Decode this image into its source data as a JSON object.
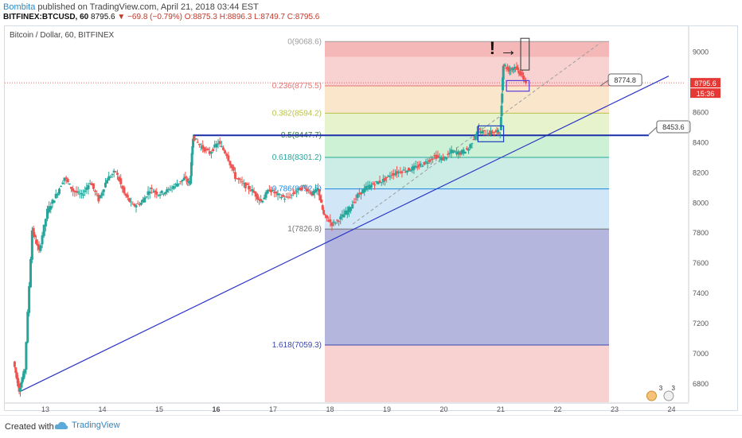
{
  "header": {
    "author": "Bombita",
    "published": "published on TradingView.com, April 21, 2018 03:44 EST",
    "symbol": "BITFINEX:BTCUSD, 60",
    "last": "8795.6",
    "change": "−69.8 (−0.79%)",
    "ohlc": "O:8875.3 H:8896.3 L:8749.7 C:8795.6"
  },
  "chart_title": "Bitcoin / Dollar, 60, BITFINEX",
  "footer": {
    "created_with": "Created with",
    "brand": "TradingView"
  },
  "colors": {
    "bull": "#26a69a",
    "bear": "#ef5350",
    "trend": "#2b35c7",
    "hline": "#1b2fa8",
    "fib0": "#ef9a9a",
    "fib236": "#f3c98b",
    "fib382": "#c9e58f",
    "fib5": "#8fdf9f",
    "fib618": "#8fd6c7",
    "fib786": "#9ac7ea",
    "fib1": "#bdbdbd",
    "fib1618": "#9fa1ef"
  },
  "chart_data": {
    "type": "candlestick",
    "title": "Bitcoin / Dollar, 60, BITFINEX",
    "x_ticks": [
      "13",
      "14",
      "15",
      "16",
      "17",
      "18",
      "19",
      "20",
      "21",
      "22",
      "23",
      "24"
    ],
    "y_ticks": [
      6800,
      7000,
      7200,
      7400,
      7600,
      7800,
      8000,
      8200,
      8400,
      8600,
      8800,
      9000
    ],
    "ylim": [
      6680,
      9170
    ],
    "last_price": "8795.6",
    "countdown": "15:36",
    "fib_retracement": [
      {
        "label": "0(9068.6)",
        "price": 9068.6
      },
      {
        "label": "0.236(8775.5)",
        "price": 8775.5
      },
      {
        "label": "0.382(8594.2)",
        "price": 8594.2
      },
      {
        "label": "0.5(8447.7)",
        "price": 8447.7
      },
      {
        "label": "0.618(8301.2)",
        "price": 8301.2
      },
      {
        "label": "0.786(8092.5)",
        "price": 8092.5
      },
      {
        "label": "1(7826.8)",
        "price": 7826.8
      },
      {
        "label": "1.618(7059.3)",
        "price": 7059.3
      }
    ],
    "callouts": [
      {
        "label": "8774.8",
        "price": 8774.8
      },
      {
        "label": "8453.6",
        "price": 8453.6
      }
    ],
    "horizontal_line": 8447.7,
    "trendline": [
      [
        12.55,
        6750
      ],
      [
        23.95,
        8840
      ]
    ],
    "annotations": [
      "!",
      "→"
    ],
    "price_path": [
      [
        12.45,
        6950
      ],
      [
        12.55,
        6760
      ],
      [
        12.65,
        6900
      ],
      [
        12.78,
        7820
      ],
      [
        12.9,
        7680
      ],
      [
        13.05,
        7950
      ],
      [
        13.2,
        8050
      ],
      [
        13.35,
        8170
      ],
      [
        13.5,
        8080
      ],
      [
        13.65,
        8050
      ],
      [
        13.8,
        8140
      ],
      [
        13.95,
        8020
      ],
      [
        14.1,
        8160
      ],
      [
        14.25,
        8210
      ],
      [
        14.4,
        8060
      ],
      [
        14.55,
        7980
      ],
      [
        14.7,
        8000
      ],
      [
        14.85,
        8090
      ],
      [
        15.0,
        8060
      ],
      [
        15.15,
        8080
      ],
      [
        15.3,
        8120
      ],
      [
        15.45,
        8160
      ],
      [
        15.55,
        8130
      ],
      [
        15.6,
        8440
      ],
      [
        15.75,
        8370
      ],
      [
        15.9,
        8330
      ],
      [
        16.05,
        8400
      ],
      [
        16.2,
        8320
      ],
      [
        16.35,
        8170
      ],
      [
        16.5,
        8120
      ],
      [
        16.65,
        8080
      ],
      [
        16.8,
        8010
      ],
      [
        16.95,
        8090
      ],
      [
        17.1,
        8050
      ],
      [
        17.25,
        8030
      ],
      [
        17.4,
        8070
      ],
      [
        17.55,
        8110
      ],
      [
        17.7,
        8060
      ],
      [
        17.8,
        8090
      ],
      [
        17.9,
        7920
      ],
      [
        18.05,
        7860
      ],
      [
        18.2,
        7900
      ],
      [
        18.35,
        7960
      ],
      [
        18.5,
        8050
      ],
      [
        18.65,
        8100
      ],
      [
        18.8,
        8130
      ],
      [
        18.95,
        8150
      ],
      [
        19.1,
        8190
      ],
      [
        19.25,
        8210
      ],
      [
        19.4,
        8220
      ],
      [
        19.55,
        8240
      ],
      [
        19.7,
        8270
      ],
      [
        19.85,
        8310
      ],
      [
        20.0,
        8290
      ],
      [
        20.15,
        8340
      ],
      [
        20.3,
        8330
      ],
      [
        20.45,
        8360
      ],
      [
        20.6,
        8480
      ],
      [
        20.75,
        8460
      ],
      [
        20.9,
        8470
      ],
      [
        21.0,
        8470
      ],
      [
        21.05,
        8920
      ],
      [
        21.15,
        8880
      ],
      [
        21.25,
        8900
      ],
      [
        21.35,
        8860
      ],
      [
        21.45,
        8800
      ]
    ]
  }
}
